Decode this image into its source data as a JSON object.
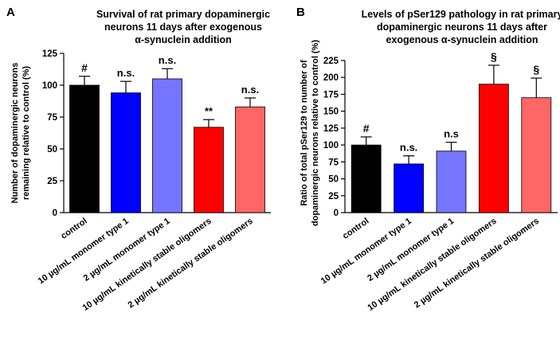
{
  "chart_data": [
    {
      "type": "bar",
      "panel_label": "A",
      "title": [
        "Survival of rat primary dopaminergic",
        "neurons 11 days after exogenous",
        "α-synuclein addition"
      ],
      "ylabel": [
        "Number of dopaminergic neurons",
        "remaining relative to control (%)"
      ],
      "ylim": [
        0,
        125
      ],
      "yticks": [
        0,
        25,
        50,
        75,
        100,
        125
      ],
      "categories": [
        "control",
        "10 µg/mL monomer type 1",
        "2 µg/mL monomer type 1",
        "10 µg/mL kinetically stable oligomers",
        "2 µg/mL kinetically stable oligomers"
      ],
      "values": [
        100,
        94,
        105,
        67,
        83
      ],
      "errors": [
        7,
        9,
        8,
        6,
        7
      ],
      "annotations": [
        "#",
        "n.s.",
        "n.s.",
        "**",
        "n.s."
      ],
      "colors": [
        "#000000",
        "#0000ff",
        "#7575ff",
        "#ff0000",
        "#ff6666"
      ]
    },
    {
      "type": "bar",
      "panel_label": "B",
      "title": [
        "Levels of pSer129 pathology in rat primary",
        "dopaminergic neurons 11 days after",
        "exogenous α-synuclein addition"
      ],
      "ylabel": [
        "Ratio of total pSer129 to number of",
        "dopaminergic neurons relative to control (%)"
      ],
      "ylim": [
        0,
        225
      ],
      "yticks": [
        0,
        25,
        50,
        75,
        100,
        125,
        150,
        175,
        200,
        225
      ],
      "categories": [
        "control",
        "10 µg/mL monomer type 1",
        "2 µg/mL monomer type 1",
        "10 µg/mL kinetically stable oligomers",
        "2 µg/mL kinetically stable oligomers"
      ],
      "values": [
        100,
        72,
        91,
        190,
        170
      ],
      "errors": [
        12,
        12,
        13,
        28,
        29
      ],
      "annotations": [
        "#",
        "n.s.",
        "n.s",
        "§",
        "§"
      ],
      "colors": [
        "#000000",
        "#0000ff",
        "#7575ff",
        "#ff0000",
        "#ff6666"
      ]
    }
  ]
}
